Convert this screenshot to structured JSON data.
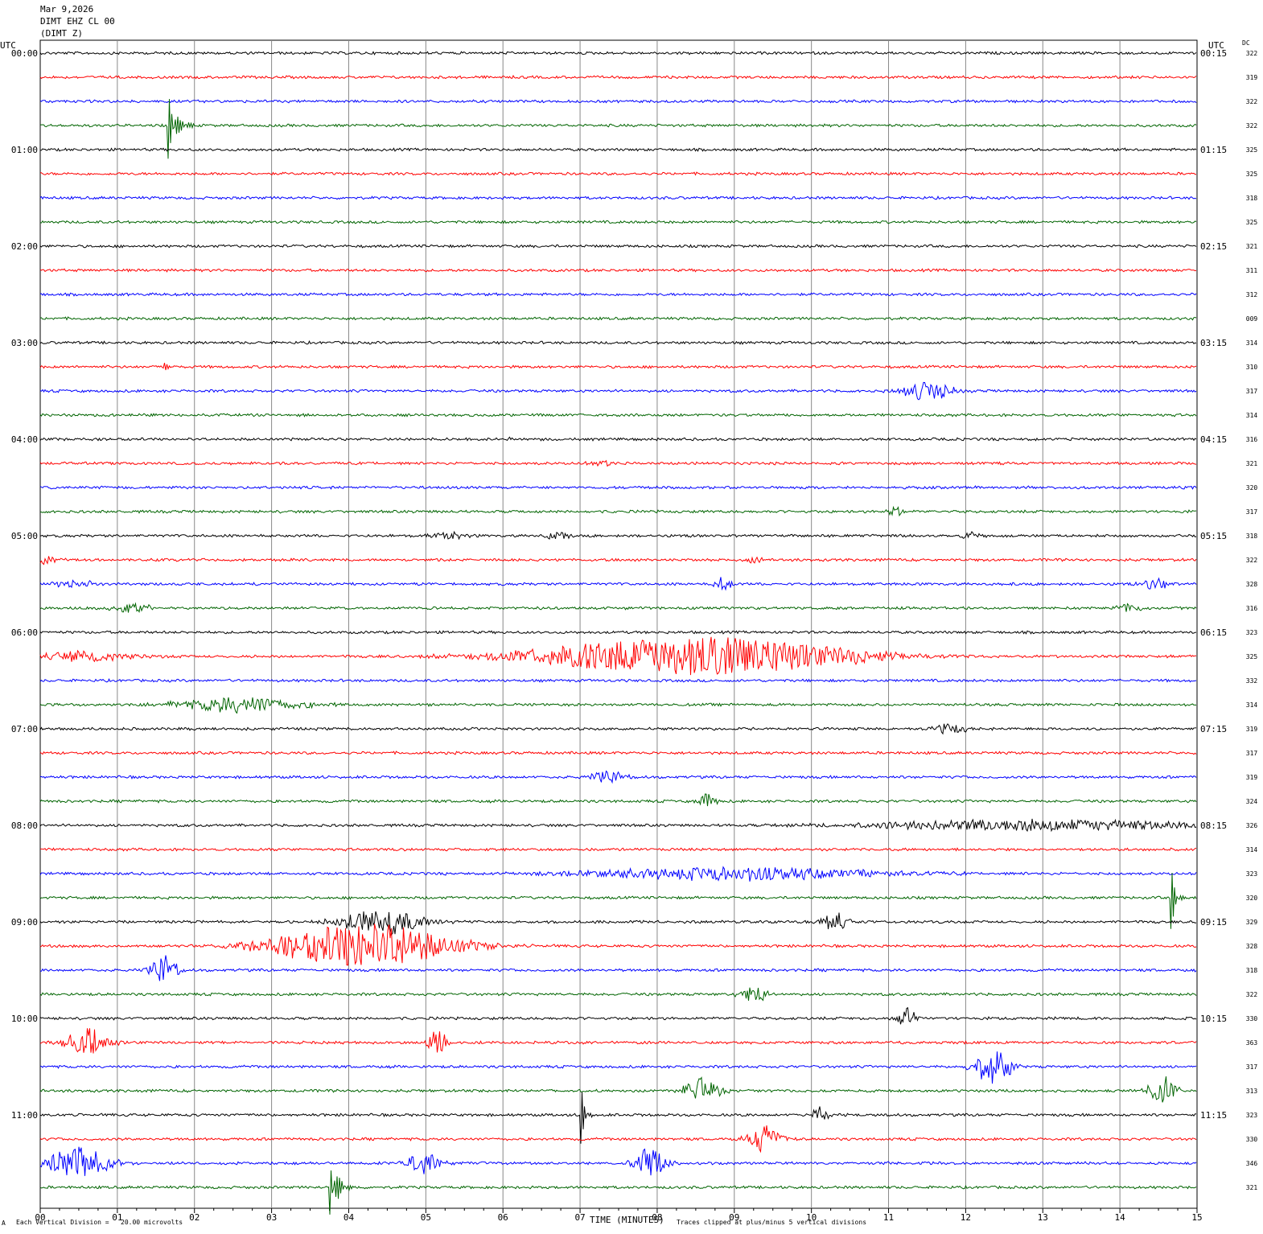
{
  "header": {
    "date": "Mar 9,2026",
    "station": "DIMT EHZ CL 00",
    "component": "(DIMT Z)"
  },
  "left_axis_title": "UTC",
  "right_axis_title": "UTC",
  "dc_header": "DC",
  "footer": {
    "scale_note": "Each Vertical Division =   20.00 microvolts",
    "clip_note": "Traces clipped at plus/minus 5 vertical divisions",
    "corner_mark": "A"
  },
  "chart_data": {
    "type": "line",
    "title": "",
    "xlabel": "TIME (MINUTES)",
    "ylabel": "",
    "xlim": [
      0,
      15
    ],
    "x_ticks": [
      "00",
      "01",
      "02",
      "03",
      "04",
      "05",
      "06",
      "07",
      "08",
      "09",
      "10",
      "11",
      "12",
      "13",
      "14",
      "15"
    ],
    "grid": true,
    "trace_colors": [
      "#000000",
      "#ff0000",
      "#0000ff",
      "#006400"
    ],
    "left_labels": [
      "00:00",
      "01:00",
      "02:00",
      "03:00",
      "04:00",
      "05:00",
      "06:00",
      "07:00",
      "08:00",
      "09:00",
      "10:00",
      "11:00"
    ],
    "right_labels": [
      "00:15",
      "01:15",
      "02:15",
      "03:15",
      "04:15",
      "05:15",
      "06:15",
      "07:15",
      "08:15",
      "09:15",
      "10:15",
      "11:15"
    ],
    "dc_values": [
      "322",
      "319",
      "322",
      "322",
      "325",
      "325",
      "318",
      "325",
      "321",
      "311",
      "312",
      "009",
      "314",
      "310",
      "317",
      "314",
      "316",
      "321",
      "320",
      "317",
      "318",
      "322",
      "328",
      "316",
      "323",
      "325",
      "332",
      "314",
      "319",
      "317",
      "319",
      "324",
      "326",
      "314",
      "323",
      "320",
      "329",
      "328",
      "318",
      "322",
      "330",
      "363",
      "317",
      "313",
      "323",
      "330",
      "346",
      "321"
    ],
    "events": [
      {
        "row": 3,
        "minute": 1.65,
        "amp": 1.6,
        "dur": 0.4,
        "type": "spike"
      },
      {
        "row": 13,
        "minute": 1.58,
        "amp": 0.7,
        "dur": 0.15,
        "type": "spike"
      },
      {
        "row": 14,
        "minute": 11.5,
        "amp": 0.6,
        "dur": 0.6,
        "type": "burst"
      },
      {
        "row": 16,
        "minute": 6.1,
        "amp": 0.15,
        "dur": 0.1,
        "type": "burst"
      },
      {
        "row": 17,
        "minute": 7.3,
        "amp": 0.15,
        "dur": 0.4,
        "type": "burst"
      },
      {
        "row": 19,
        "minute": 11.1,
        "amp": 0.3,
        "dur": 0.2,
        "type": "burst"
      },
      {
        "row": 20,
        "minute": 5.3,
        "amp": 0.2,
        "dur": 0.5,
        "type": "burst"
      },
      {
        "row": 20,
        "minute": 6.7,
        "amp": 0.25,
        "dur": 0.3,
        "type": "burst"
      },
      {
        "row": 20,
        "minute": 12.05,
        "amp": 0.25,
        "dur": 0.3,
        "type": "burst"
      },
      {
        "row": 21,
        "minute": 0.1,
        "amp": 0.3,
        "dur": 0.25,
        "type": "burst"
      },
      {
        "row": 21,
        "minute": 9.3,
        "amp": 0.25,
        "dur": 0.2,
        "type": "burst"
      },
      {
        "row": 22,
        "minute": 0.4,
        "amp": 0.2,
        "dur": 0.6,
        "type": "burst"
      },
      {
        "row": 22,
        "minute": 8.85,
        "amp": 0.4,
        "dur": 0.2,
        "type": "burst"
      },
      {
        "row": 22,
        "minute": 14.45,
        "amp": 0.4,
        "dur": 0.3,
        "type": "burst"
      },
      {
        "row": 23,
        "minute": 1.2,
        "amp": 0.35,
        "dur": 0.4,
        "type": "burst"
      },
      {
        "row": 23,
        "minute": 14.1,
        "amp": 0.3,
        "dur": 0.3,
        "type": "burst"
      },
      {
        "row": 25,
        "minute": 8.5,
        "amp": 1.2,
        "dur": 3.5,
        "type": "burst"
      },
      {
        "row": 25,
        "minute": 0.6,
        "amp": 0.3,
        "dur": 1.2,
        "type": "burst"
      },
      {
        "row": 27,
        "minute": 2.6,
        "amp": 0.5,
        "dur": 1.4,
        "type": "burst"
      },
      {
        "row": 28,
        "minute": 11.8,
        "amp": 0.3,
        "dur": 0.4,
        "type": "burst"
      },
      {
        "row": 30,
        "minute": 7.35,
        "amp": 0.4,
        "dur": 0.4,
        "type": "burst"
      },
      {
        "row": 31,
        "minute": 8.65,
        "amp": 0.5,
        "dur": 0.2,
        "type": "burst"
      },
      {
        "row": 32,
        "minute": 13.0,
        "amp": 0.35,
        "dur": 4.0,
        "type": "burst"
      },
      {
        "row": 34,
        "minute": 9.0,
        "amp": 0.4,
        "dur": 3.5,
        "type": "burst"
      },
      {
        "row": 35,
        "minute": 14.65,
        "amp": 2.0,
        "dur": 0.2,
        "type": "spike"
      },
      {
        "row": 36,
        "minute": 4.4,
        "amp": 0.8,
        "dur": 1.0,
        "type": "burst"
      },
      {
        "row": 36,
        "minute": 10.3,
        "amp": 0.6,
        "dur": 0.3,
        "type": "burst"
      },
      {
        "row": 37,
        "minute": 4.2,
        "amp": 1.4,
        "dur": 2.0,
        "type": "burst"
      },
      {
        "row": 38,
        "minute": 1.6,
        "amp": 0.9,
        "dur": 0.3,
        "type": "burst"
      },
      {
        "row": 39,
        "minute": 9.25,
        "amp": 0.6,
        "dur": 0.3,
        "type": "burst"
      },
      {
        "row": 40,
        "minute": 11.25,
        "amp": 0.7,
        "dur": 0.2,
        "type": "burst"
      },
      {
        "row": 41,
        "minute": 0.6,
        "amp": 0.9,
        "dur": 0.5,
        "type": "burst"
      },
      {
        "row": 41,
        "minute": 5.15,
        "amp": 0.8,
        "dur": 0.2,
        "type": "burst"
      },
      {
        "row": 42,
        "minute": 12.35,
        "amp": 1.2,
        "dur": 0.4,
        "type": "burst"
      },
      {
        "row": 43,
        "minute": 8.6,
        "amp": 1.0,
        "dur": 0.4,
        "type": "burst"
      },
      {
        "row": 43,
        "minute": 14.55,
        "amp": 0.9,
        "dur": 0.3,
        "type": "burst"
      },
      {
        "row": 44,
        "minute": 7.0,
        "amp": 1.7,
        "dur": 0.2,
        "type": "spike"
      },
      {
        "row": 44,
        "minute": 10.1,
        "amp": 0.5,
        "dur": 0.2,
        "type": "burst"
      },
      {
        "row": 45,
        "minute": 9.4,
        "amp": 0.8,
        "dur": 0.4,
        "type": "burst"
      },
      {
        "row": 46,
        "minute": 0.5,
        "amp": 1.0,
        "dur": 0.7,
        "type": "burst"
      },
      {
        "row": 46,
        "minute": 7.9,
        "amp": 0.9,
        "dur": 0.4,
        "type": "burst"
      },
      {
        "row": 46,
        "minute": 4.95,
        "amp": 0.6,
        "dur": 0.4,
        "type": "burst"
      },
      {
        "row": 47,
        "minute": 3.75,
        "amp": 1.6,
        "dur": 0.4,
        "type": "spike"
      }
    ]
  }
}
